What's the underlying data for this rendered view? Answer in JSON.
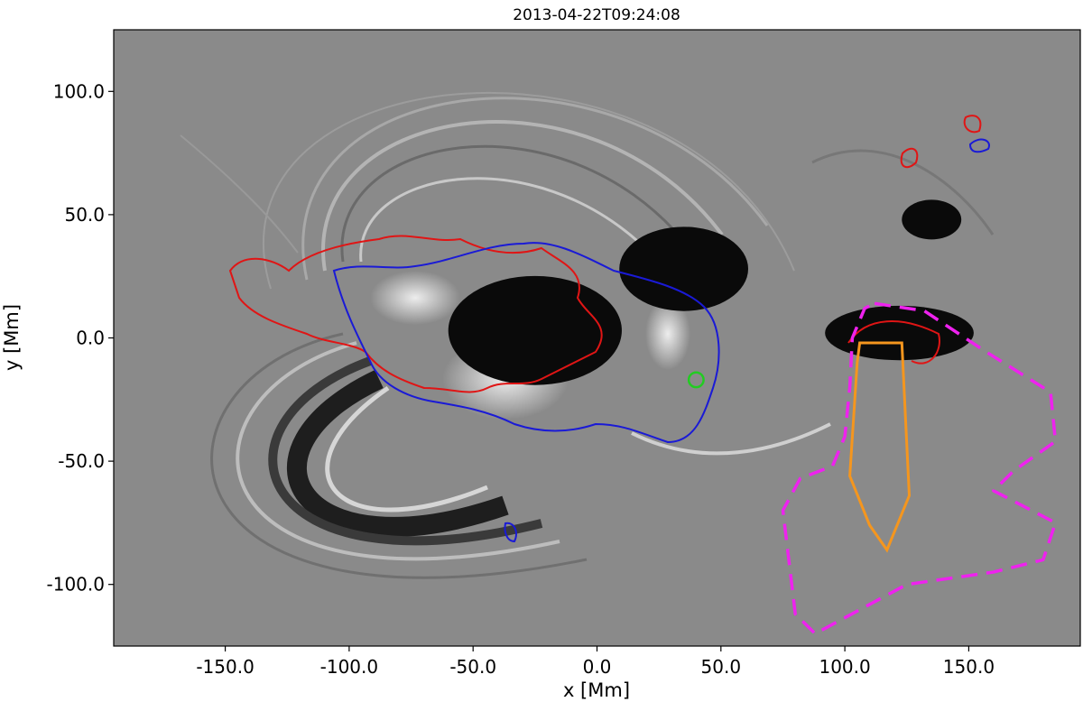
{
  "figure": {
    "title": "2013-04-22T09:24:08",
    "xlabel": "x [Mm]",
    "ylabel": "y [Mm]",
    "xlim": [
      -195,
      195
    ],
    "ylim": [
      -125,
      125
    ],
    "xticks": [
      {
        "value": -150,
        "label": "-150.0"
      },
      {
        "value": -100,
        "label": "-100.0"
      },
      {
        "value": -50,
        "label": "-50.0"
      },
      {
        "value": 0,
        "label": "0.0"
      },
      {
        "value": 50,
        "label": "50.0"
      },
      {
        "value": 100,
        "label": "100.0"
      },
      {
        "value": 150,
        "label": "150.0"
      }
    ],
    "yticks": [
      {
        "value": 100,
        "label": "100.0"
      },
      {
        "value": 50,
        "label": "50.0"
      },
      {
        "value": 0,
        "label": "0.0"
      },
      {
        "value": -50,
        "label": "-50.0"
      },
      {
        "value": -100,
        "label": "-100.0"
      }
    ]
  },
  "colors": {
    "positive_contour": "#e01515",
    "negative_contour": "#1a1ad6",
    "green_contour": "#22cc22",
    "orange_region": "#f5961e",
    "magenta_region": "#ee22ee",
    "background": "#8a8a8a"
  },
  "regions": {
    "orange_polygon_mm": [
      [
        106,
        -2
      ],
      [
        123,
        -2
      ],
      [
        126,
        -64
      ],
      [
        117,
        -86
      ],
      [
        110,
        -76
      ],
      [
        102,
        -56
      ],
      [
        105,
        -10
      ]
    ],
    "magenta_dashed_mm": [
      [
        112,
        14
      ],
      [
        132,
        11
      ],
      [
        156,
        -5
      ],
      [
        183,
        -22
      ],
      [
        185,
        -42
      ],
      [
        168,
        -54
      ],
      [
        160,
        -62
      ],
      [
        185,
        -75
      ],
      [
        180,
        -90
      ],
      [
        160,
        -95
      ],
      [
        125,
        -100
      ],
      [
        88,
        -120
      ],
      [
        80,
        -112
      ],
      [
        75,
        -70
      ],
      [
        82,
        -57
      ],
      [
        95,
        -52
      ],
      [
        100,
        -40
      ],
      [
        102,
        -20
      ],
      [
        103,
        0
      ],
      [
        108,
        12
      ]
    ]
  },
  "features": {
    "dark_patches_mm": [
      {
        "cx": 35,
        "cy": 28,
        "rx": 26,
        "ry": 17
      },
      {
        "cx": -25,
        "cy": 3,
        "rx": 35,
        "ry": 22
      },
      {
        "cx": 122,
        "cy": 2,
        "rx": 30,
        "ry": 11
      },
      {
        "cx": 135,
        "cy": 48,
        "rx": 12,
        "ry": 8
      }
    ],
    "green_contour_mm": {
      "cx": 40,
      "cy": -17,
      "r": 3
    }
  }
}
